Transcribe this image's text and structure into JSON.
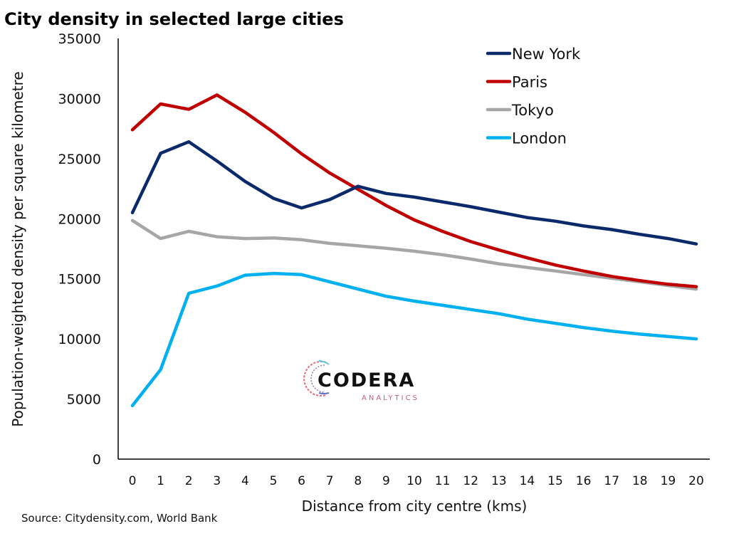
{
  "chart_data": {
    "type": "line",
    "title": "City density in selected large cities",
    "xlabel": "Distance from city centre (kms)",
    "ylabel": "Population-weighted density per square kilometre",
    "source": "Source: Citydensity.com, World Bank",
    "x": [
      0,
      1,
      2,
      3,
      4,
      5,
      6,
      7,
      8,
      9,
      10,
      11,
      12,
      13,
      14,
      15,
      16,
      17,
      18,
      19,
      20
    ],
    "ylim": [
      0,
      35000
    ],
    "yticks": [
      0,
      5000,
      10000,
      15000,
      20000,
      25000,
      30000,
      35000
    ],
    "grid": false,
    "legend_position": "top-right",
    "series": [
      {
        "name": "New York",
        "color": "#0b2a6b",
        "values": [
          20500,
          25450,
          26400,
          24800,
          23100,
          21700,
          20900,
          21600,
          22700,
          22100,
          21800,
          21400,
          21000,
          20550,
          20100,
          19800,
          19400,
          19100,
          18700,
          18350,
          17900
        ]
      },
      {
        "name": "Paris",
        "color": "#c00000",
        "values": [
          27400,
          29550,
          29100,
          30300,
          28850,
          27200,
          25400,
          23800,
          22450,
          21100,
          19900,
          18950,
          18100,
          17400,
          16750,
          16150,
          15650,
          15200,
          14850,
          14550,
          14350
        ]
      },
      {
        "name": "Tokyo",
        "color": "#a6a6a6",
        "values": [
          19850,
          18350,
          18950,
          18500,
          18350,
          18400,
          18250,
          17950,
          17750,
          17550,
          17300,
          17000,
          16650,
          16250,
          15950,
          15650,
          15350,
          15050,
          14750,
          14450,
          14150
        ]
      },
      {
        "name": "London",
        "color": "#00b0f0",
        "values": [
          4450,
          7450,
          13800,
          14400,
          15300,
          15450,
          15350,
          14750,
          14150,
          13550,
          13150,
          12800,
          12450,
          12100,
          11650,
          11300,
          10950,
          10650,
          10400,
          10200,
          10000
        ]
      }
    ]
  },
  "logo": {
    "name": "CODERA",
    "subtitle": "ANALYTICS"
  }
}
